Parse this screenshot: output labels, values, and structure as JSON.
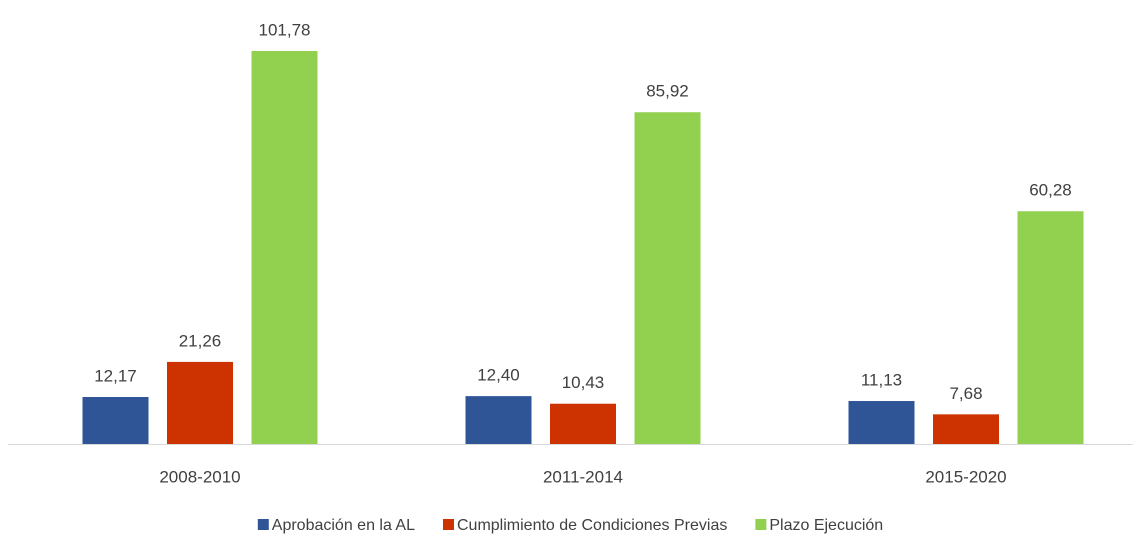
{
  "chart_data": {
    "type": "bar",
    "categories": [
      "2008-2010",
      "2011-2014",
      "2015-2020"
    ],
    "series": [
      {
        "name": "Aprobación en la AL",
        "color": "#2f5597",
        "values": [
          12.17,
          12.4,
          11.13
        ],
        "value_labels": [
          "12,17",
          "12,40",
          "11,13"
        ]
      },
      {
        "name": "Cumplimiento de Condiciones Previas",
        "color": "#cc3300",
        "values": [
          21.26,
          10.43,
          7.68
        ],
        "value_labels": [
          "21,26",
          "10,43",
          "7,68"
        ]
      },
      {
        "name": "Plazo Ejecución",
        "color": "#92d050",
        "values": [
          101.78,
          85.92,
          60.28
        ],
        "value_labels": [
          "101,78",
          "85,92",
          "60,28"
        ]
      }
    ],
    "legend": "bottom"
  }
}
